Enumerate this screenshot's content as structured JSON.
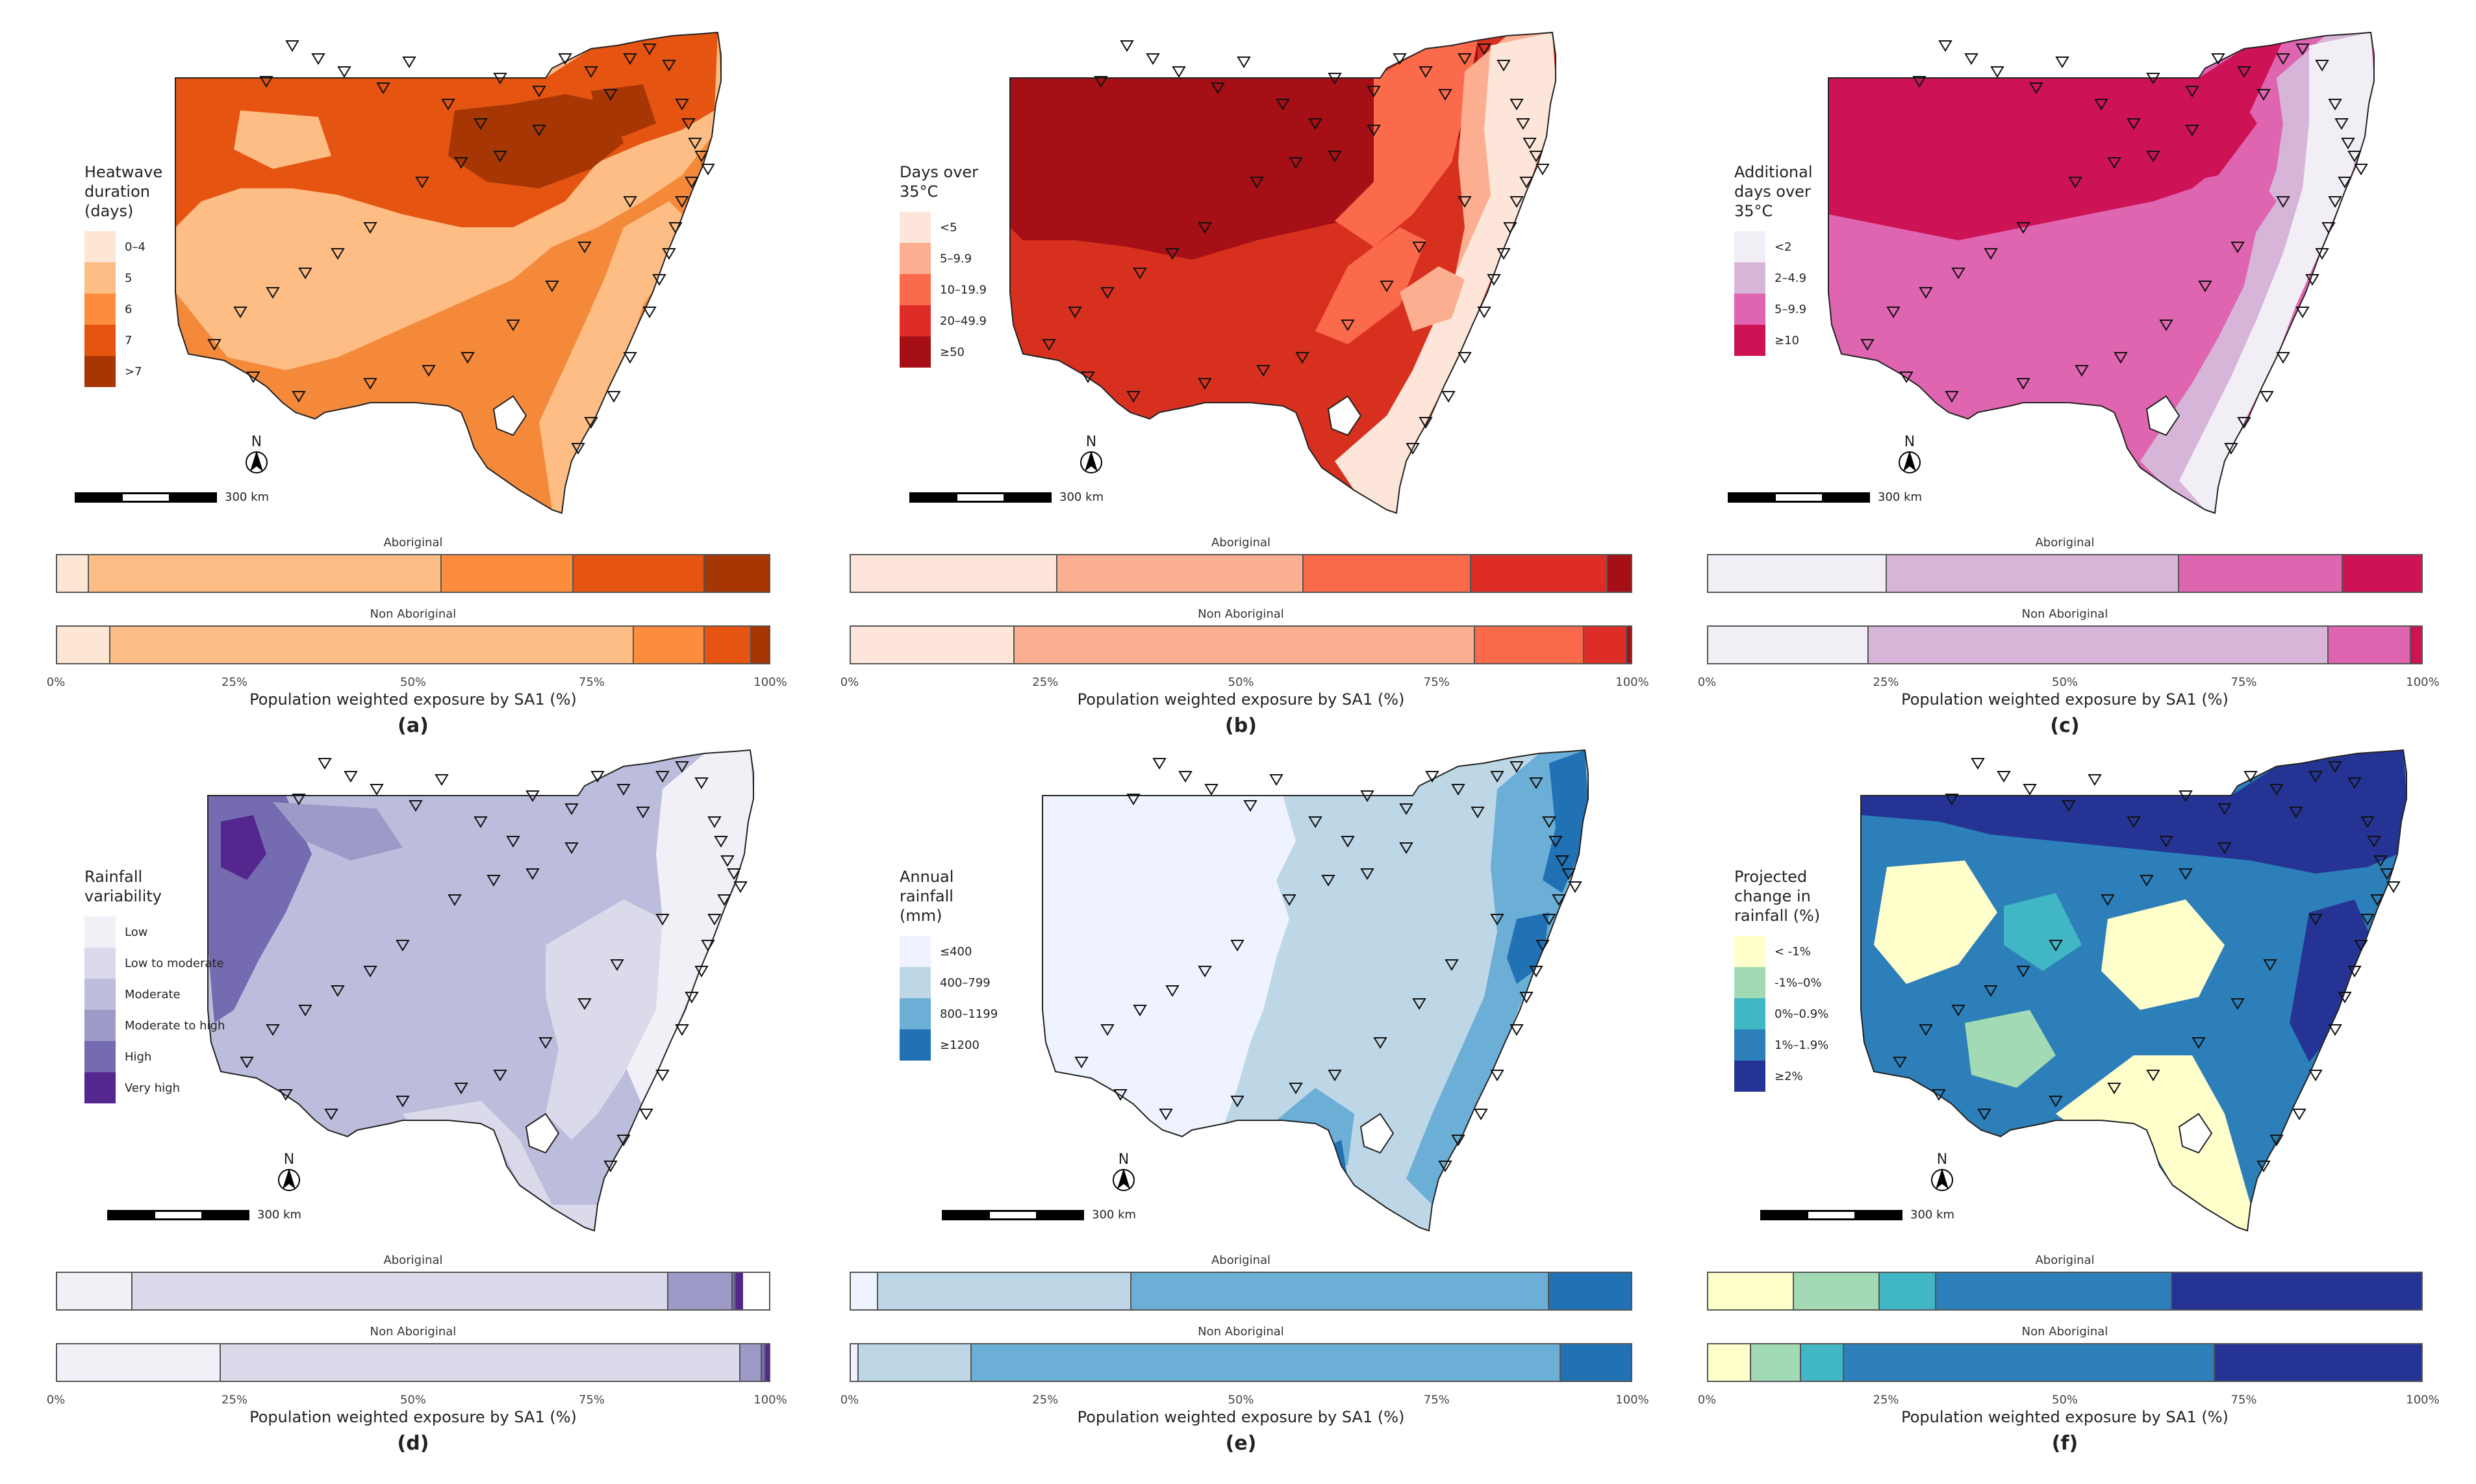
{
  "common": {
    "scale_label": "300 km",
    "north_label": "N",
    "group_aboriginal": "Aboriginal",
    "group_non_aboriginal": "Non Aboriginal",
    "axis_title": "Population weighted exposure by SA1 (%)",
    "ticks": [
      "0%",
      "25%",
      "50%",
      "75%",
      "100%"
    ],
    "tick_values": [
      0,
      25,
      50,
      75,
      100
    ]
  },
  "panels": [
    {
      "label": "(a)",
      "legend_title": "Heatwave\nduration\n(days)",
      "map_base": "#f4893a",
      "categories": [
        "0–4",
        "5",
        "6",
        "7",
        ">7"
      ],
      "colors": [
        "#fde6d4",
        "#fdbd84",
        "#fd8d3c",
        "#e55410",
        "#a63603"
      ],
      "chart_data": {
        "type": "bar",
        "title": "Population weighted exposure by SA1 (%)",
        "xlabel": "Population weighted exposure by SA1 (%)",
        "xlim": [
          0,
          100
        ],
        "categories": [
          "0–4",
          "5",
          "6",
          "7",
          ">7"
        ],
        "series": [
          {
            "name": "Aboriginal",
            "values": [
              4.5,
              49.5,
              18.5,
              18.5,
              9
            ]
          },
          {
            "name": "Non Aboriginal",
            "values": [
              7.5,
              73.5,
              10,
              6.5,
              2.5
            ]
          }
        ]
      }
    },
    {
      "label": "(b)",
      "legend_title": "Days over\n35°C",
      "map_base": "#d7301f",
      "categories": [
        "<5",
        "5–9.9",
        "10–19.9",
        "20–49.9",
        "≥50"
      ],
      "colors": [
        "#fee5d9",
        "#fcae91",
        "#fb6a4a",
        "#de2d26",
        "#a50f15"
      ],
      "chart_data": {
        "type": "bar",
        "title": "Population weighted exposure by SA1 (%)",
        "xlabel": "Population weighted exposure by SA1 (%)",
        "xlim": [
          0,
          100
        ],
        "categories": [
          "<5",
          "5–9.9",
          "10–19.9",
          "20–49.9",
          "≥50"
        ],
        "series": [
          {
            "name": "Aboriginal",
            "values": [
              26.5,
              31.5,
              21.5,
              17.5,
              3
            ]
          },
          {
            "name": "Non Aboriginal",
            "values": [
              21,
              59,
              14,
              5.5,
              0.5
            ]
          }
        ]
      }
    },
    {
      "label": "(c)",
      "legend_title": "Additional\ndays over\n35°C",
      "map_base": "#df65b0",
      "categories": [
        "<2",
        "2–4.9",
        "5–9.9",
        "≥10"
      ],
      "colors": [
        "#f1eef6",
        "#d7b5d8",
        "#df65b0",
        "#ce1256"
      ],
      "chart_data": {
        "type": "bar",
        "title": "Population weighted exposure by SA1 (%)",
        "xlabel": "Population weighted exposure by SA1 (%)",
        "xlim": [
          0,
          100
        ],
        "categories": [
          "<2",
          "2–4.9",
          "5–9.9",
          "≥10"
        ],
        "series": [
          {
            "name": "Aboriginal",
            "values": [
              25,
              41,
              23,
              11
            ]
          },
          {
            "name": "Non Aboriginal",
            "values": [
              22.5,
              64.5,
              11.5,
              1.5
            ]
          }
        ]
      }
    },
    {
      "label": "(d)",
      "legend_title": "Rainfall\nvariability",
      "map_base": "#bcbddc",
      "categories": [
        "Low",
        "Low to moderate",
        "Moderate",
        "Moderate to high",
        "High",
        "Very high"
      ],
      "colors": [
        "#f2f0f7",
        "#dadaeb",
        "#bcbddc",
        "#9e9ac8",
        "#756bb1",
        "#54278f"
      ],
      "chart_data": {
        "type": "bar",
        "title": "Population weighted exposure by SA1 (%)",
        "xlabel": "Population weighted exposure by SA1 (%)",
        "xlim": [
          0,
          100
        ],
        "categories": [
          "Low",
          "Low to moderate",
          "Moderate",
          "Moderate to high",
          "High",
          "Very high"
        ],
        "series": [
          {
            "name": "Aboriginal",
            "values": [
              10.5,
              75,
              0,
              9,
              0.5,
              1
            ]
          },
          {
            "name": "Non Aboriginal",
            "values": [
              23,
              73,
              0,
              3,
              0.5,
              0.5
            ]
          }
        ]
      }
    },
    {
      "label": "(e)",
      "legend_title": "Annual\nrainfall\n(mm)",
      "map_base": "#bdd7e7",
      "categories": [
        "≤400",
        "400–799",
        "800–1199",
        "≥1200"
      ],
      "colors": [
        "#eff3ff",
        "#bdd7e7",
        "#6baed6",
        "#2171b5"
      ],
      "chart_data": {
        "type": "bar",
        "title": "Population weighted exposure by SA1 (%)",
        "xlabel": "Population weighted exposure by SA1 (%)",
        "xlim": [
          0,
          100
        ],
        "categories": [
          "≤400",
          "400–799",
          "800–1199",
          "≥1200"
        ],
        "series": [
          {
            "name": "Aboriginal",
            "values": [
              3.5,
              32.5,
              53.5,
              10.5
            ]
          },
          {
            "name": "Non Aboriginal",
            "values": [
              1,
              14.5,
              75.5,
              9
            ]
          }
        ]
      }
    },
    {
      "label": "(f)",
      "legend_title": "Projected\nchange in\nrainfall (%)",
      "map_base": "#2c7fb8",
      "categories": [
        "<  -1%",
        "-1%–0%",
        "0%–0.9%",
        "1%–1.9%",
        "≥2%"
      ],
      "colors": [
        "#ffffcc",
        "#a1dab4",
        "#41b6c4",
        "#2c7fb8",
        "#253494"
      ],
      "chart_data": {
        "type": "bar",
        "title": "Population weighted exposure by SA1 (%)",
        "xlabel": "Population weighted exposure by SA1 (%)",
        "xlim": [
          0,
          100
        ],
        "categories": [
          "<  -1%",
          "-1%–0%",
          "0%–0.9%",
          "1%–1.9%",
          "≥2%"
        ],
        "series": [
          {
            "name": "Aboriginal",
            "values": [
              12,
              12,
              8,
              33,
              35
            ]
          },
          {
            "name": "Non Aboriginal",
            "values": [
              6,
              7,
              6,
              52,
              29
            ]
          }
        ]
      }
    }
  ]
}
